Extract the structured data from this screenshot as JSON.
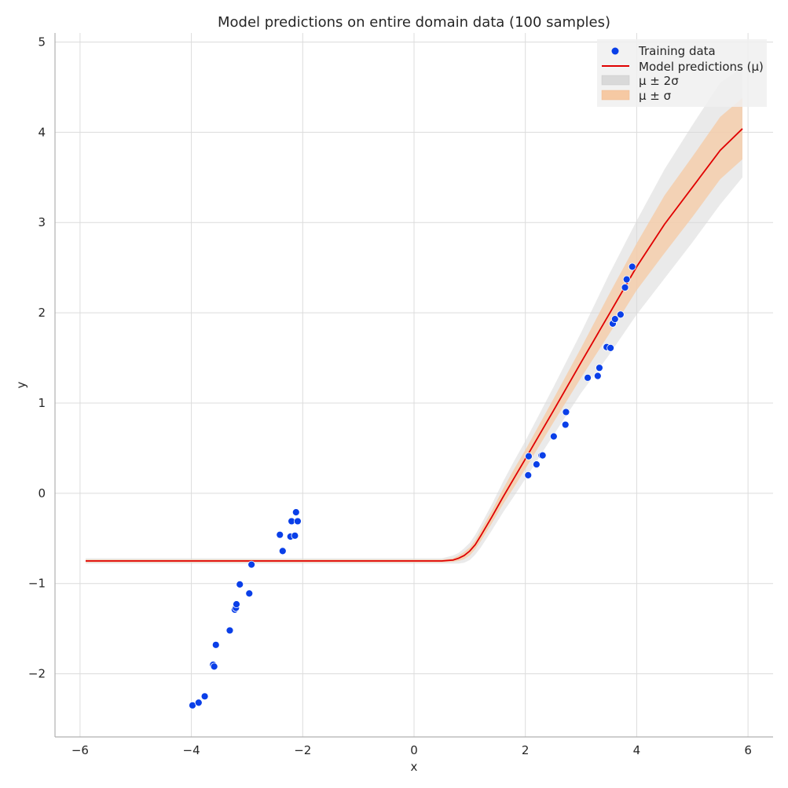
{
  "chart_data": {
    "type": "scatter",
    "title": "Model predictions on entire domain data (100 samples)",
    "xlabel": "x",
    "ylabel": "y",
    "xlim": [
      -6.45,
      6.45
    ],
    "ylim": [
      -2.7,
      5.1
    ],
    "xticks": [
      -6,
      -4,
      -2,
      0,
      2,
      4,
      6
    ],
    "yticks": [
      -2,
      -1,
      0,
      1,
      2,
      3,
      4,
      5
    ],
    "grid": true,
    "legend_position": "top-right",
    "series": [
      {
        "name": "Training data",
        "kind": "scatter",
        "color": "#0a3fe8",
        "x": [
          -3.98,
          -3.87,
          -3.76,
          -3.61,
          -3.59,
          -3.56,
          -3.31,
          -3.22,
          -3.2,
          -3.19,
          -3.13,
          -2.96,
          -2.92,
          -2.41,
          -2.36,
          -2.22,
          -2.2,
          -2.14,
          -2.12,
          -2.09,
          2.05,
          2.06,
          2.2,
          2.29,
          2.31,
          2.51,
          2.72,
          2.73,
          3.12,
          3.3,
          3.33,
          3.46,
          3.53,
          3.57,
          3.61,
          3.71,
          3.79,
          3.82,
          3.92
        ],
        "y": [
          -2.35,
          -2.32,
          -2.25,
          -1.9,
          -1.92,
          -1.68,
          -1.52,
          -1.29,
          -1.27,
          -1.23,
          -1.01,
          -1.11,
          -0.79,
          -0.46,
          -0.64,
          -0.48,
          -0.31,
          -0.47,
          -0.21,
          -0.31,
          0.2,
          0.41,
          0.32,
          0.42,
          0.42,
          0.63,
          0.76,
          0.9,
          1.28,
          1.3,
          1.39,
          1.62,
          1.61,
          1.88,
          1.93,
          1.98,
          2.28,
          2.37,
          2.51
        ]
      },
      {
        "name": "Model predictions (μ)",
        "kind": "line",
        "color": "#e00000",
        "x": [
          -5.9,
          -4,
          -2,
          0,
          0.5,
          0.7,
          0.8,
          0.9,
          1.0,
          1.1,
          1.2,
          1.4,
          1.6,
          1.8,
          2.0,
          2.5,
          3.0,
          3.5,
          4.0,
          4.5,
          5.0,
          5.5,
          5.9
        ],
        "y": [
          -0.75,
          -0.75,
          -0.75,
          -0.75,
          -0.75,
          -0.74,
          -0.72,
          -0.69,
          -0.64,
          -0.57,
          -0.47,
          -0.26,
          -0.04,
          0.17,
          0.38,
          0.91,
          1.45,
          1.98,
          2.51,
          2.98,
          3.39,
          3.8,
          4.04
        ]
      },
      {
        "name": "μ ± 2σ",
        "kind": "band",
        "color": "#d9d9d9",
        "x": [
          -5.9,
          -4,
          -2,
          0,
          0.5,
          0.7,
          0.8,
          0.9,
          1.0,
          1.1,
          1.2,
          1.4,
          1.6,
          1.8,
          2.0,
          2.5,
          3.0,
          3.5,
          4.0,
          4.5,
          5.0,
          5.5,
          5.9
        ],
        "upper": [
          -0.72,
          -0.72,
          -0.72,
          -0.72,
          -0.72,
          -0.69,
          -0.66,
          -0.61,
          -0.55,
          -0.46,
          -0.35,
          -0.12,
          0.13,
          0.36,
          0.58,
          1.17,
          1.78,
          2.42,
          3.02,
          3.59,
          4.08,
          4.55,
          4.72
        ],
        "lower": [
          -0.78,
          -0.78,
          -0.78,
          -0.78,
          -0.78,
          -0.78,
          -0.78,
          -0.77,
          -0.74,
          -0.68,
          -0.6,
          -0.41,
          -0.21,
          -0.03,
          0.16,
          0.64,
          1.11,
          1.53,
          1.98,
          2.38,
          2.78,
          3.2,
          3.5
        ]
      },
      {
        "name": "μ ± σ",
        "kind": "band",
        "color": "#f6c9a3",
        "x": [
          -5.9,
          -4,
          -2,
          0,
          0.5,
          0.7,
          0.8,
          0.9,
          1.0,
          1.1,
          1.2,
          1.4,
          1.6,
          1.8,
          2.0,
          2.5,
          3.0,
          3.5,
          4.0,
          4.5,
          5.0,
          5.5,
          5.9
        ],
        "upper": [
          -0.735,
          -0.735,
          -0.735,
          -0.735,
          -0.735,
          -0.72,
          -0.69,
          -0.65,
          -0.6,
          -0.52,
          -0.41,
          -0.19,
          0.05,
          0.27,
          0.48,
          1.04,
          1.61,
          2.2,
          2.77,
          3.3,
          3.73,
          4.17,
          4.38
        ],
        "lower": [
          -0.765,
          -0.765,
          -0.765,
          -0.765,
          -0.765,
          -0.76,
          -0.75,
          -0.73,
          -0.69,
          -0.62,
          -0.53,
          -0.33,
          -0.12,
          0.07,
          0.27,
          0.78,
          1.28,
          1.76,
          2.25,
          2.66,
          3.06,
          3.48,
          3.7
        ]
      }
    ]
  }
}
